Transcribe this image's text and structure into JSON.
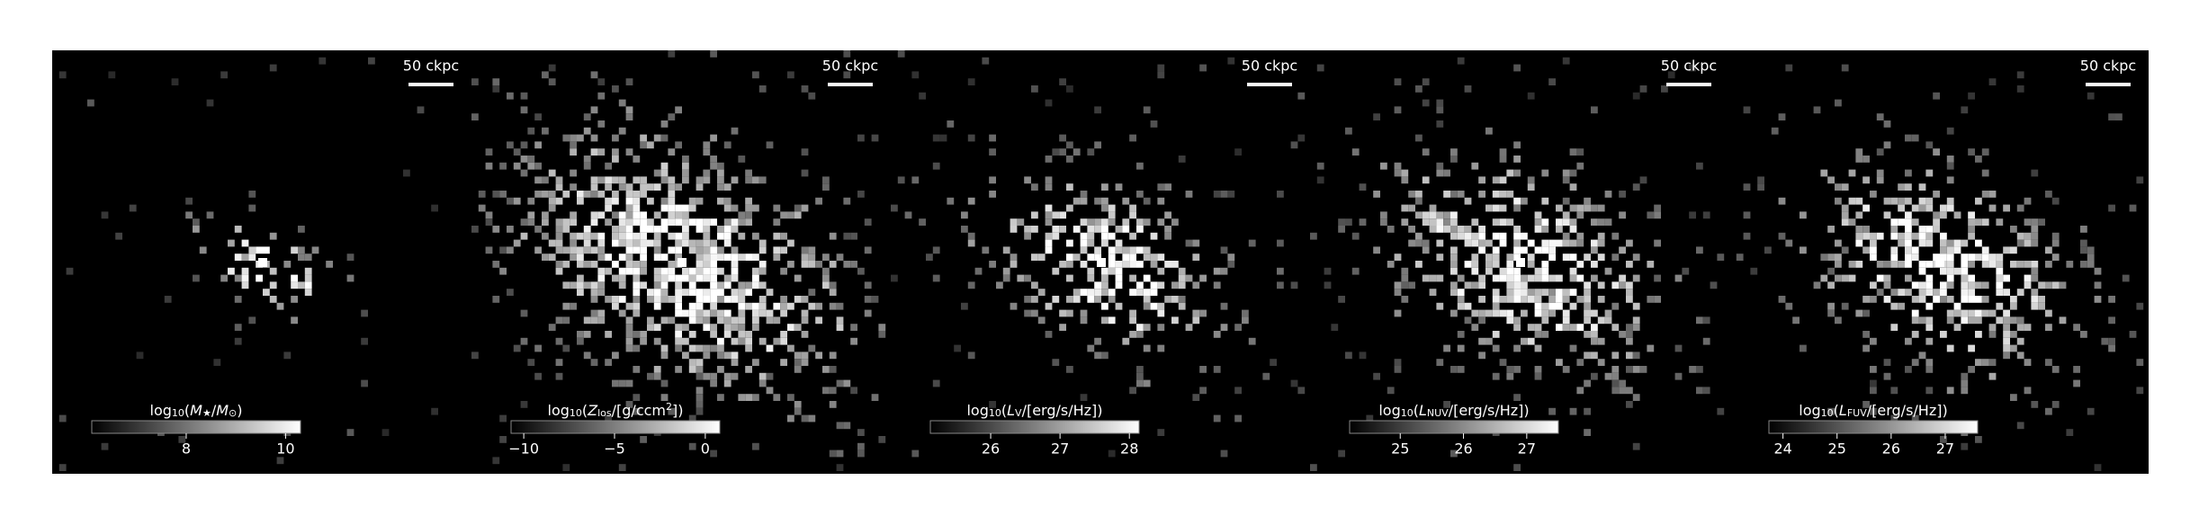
{
  "panels": [
    {
      "scale_label": "50 ckpc",
      "colorbar": {
        "label": [
          {
            "t": "log"
          },
          {
            "t": "10",
            "sub": true
          },
          {
            "t": "("
          },
          {
            "t": "M",
            "italic": true
          },
          {
            "t": "★",
            "sub": true
          },
          {
            "t": "/"
          },
          {
            "t": "M",
            "italic": true
          },
          {
            "t": "⊙",
            "sub": true
          },
          {
            "t": ")"
          }
        ],
        "clim": [
          6.1,
          10.3
        ],
        "ticks": [
          8,
          10
        ]
      }
    },
    {
      "scale_label": "50 ckpc",
      "colorbar": {
        "label": [
          {
            "t": "log"
          },
          {
            "t": "10",
            "sub": true
          },
          {
            "t": "("
          },
          {
            "t": "Z",
            "italic": true
          },
          {
            "t": "los",
            "sub": true
          },
          {
            "t": "/[g/ccm"
          },
          {
            "t": "2",
            "sup": true
          },
          {
            "t": "])"
          }
        ],
        "clim": [
          -10.7,
          0.8
        ],
        "ticks": [
          {
            "value": -10,
            "label": "−10"
          },
          {
            "value": -5,
            "label": "−5"
          },
          0
        ]
      }
    },
    {
      "scale_label": "50 ckpc",
      "colorbar": {
        "label": [
          {
            "t": "log"
          },
          {
            "t": "10",
            "sub": true
          },
          {
            "t": "("
          },
          {
            "t": "L",
            "italic": true
          },
          {
            "t": "V",
            "sub": true
          },
          {
            "t": "/[erg/s/Hz])"
          }
        ],
        "clim": [
          25.13,
          28.14
        ],
        "ticks": [
          26,
          27,
          28
        ]
      }
    },
    {
      "scale_label": "50 ckpc",
      "colorbar": {
        "label": [
          {
            "t": "log"
          },
          {
            "t": "10",
            "sub": true
          },
          {
            "t": "("
          },
          {
            "t": "L",
            "italic": true
          },
          {
            "t": "NUV",
            "sub": true
          },
          {
            "t": "/[erg/s/Hz])"
          }
        ],
        "clim": [
          24.2,
          27.5
        ],
        "ticks": [
          25,
          26,
          27
        ]
      }
    },
    {
      "scale_label": "50 ckpc",
      "colorbar": {
        "label": [
          {
            "t": "log"
          },
          {
            "t": "10",
            "sub": true
          },
          {
            "t": "("
          },
          {
            "t": "L",
            "italic": true
          },
          {
            "t": "FUV",
            "sub": true
          },
          {
            "t": "/[erg/s/Hz])"
          }
        ],
        "clim": [
          23.74,
          27.6
        ],
        "ticks": [
          24,
          25,
          26,
          27
        ]
      }
    }
  ]
}
